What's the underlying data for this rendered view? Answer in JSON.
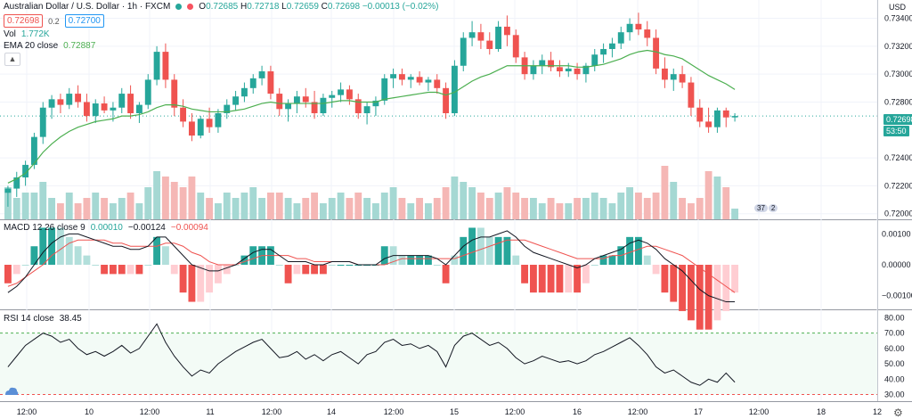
{
  "header": {
    "symbol": "Australian Dollar / U.S. Dollar · 1h · FXCM",
    "sell_price": "0.72698",
    "spread": "0.2",
    "buy_price": "0.72700",
    "ohlc": {
      "open_label": "O",
      "open": "0.72685",
      "high_label": "H",
      "high": "0.72718",
      "low_label": "L",
      "low": "0.72659",
      "close_label": "C",
      "close": "0.72698",
      "change": "−0.00013 (−0.02%)"
    }
  },
  "indicators": {
    "vol_label": "Vol",
    "vol_value": "1.772K",
    "ema_label": "EMA 20 close",
    "ema_value": "0.72887",
    "macd_label": "MACD 12 26 close 9",
    "macd_value1": "0.00010",
    "macd_value2": "−0.00124",
    "macd_value3": "−0.00094",
    "rsi_label": "RSI 14 close",
    "rsi_value": "38.45"
  },
  "price_axis": {
    "currency": "USD",
    "ticks": [
      "0.73400",
      "0.73200",
      "0.73000",
      "0.72800",
      "0.72400",
      "0.72200",
      "0.72000"
    ],
    "last_price_tag": "0.72698",
    "countdown_tag": "53:50"
  },
  "macd_axis": {
    "ticks": [
      "0.00100",
      "0.00000",
      "−0.00100"
    ]
  },
  "rsi_axis": {
    "ticks": [
      "80.00",
      "70.00",
      "60.00",
      "50.00",
      "40.00",
      "30.00"
    ]
  },
  "time_axis": {
    "ticks": [
      "12:00",
      "10",
      "12:00",
      "11",
      "12:00",
      "14",
      "12:00",
      "15",
      "12:00",
      "16",
      "12:00",
      "17",
      "12:00",
      "18",
      "12"
    ]
  },
  "events": {
    "badge_count": "37",
    "badge_count2": "2"
  },
  "colors": {
    "up": "#26a69a",
    "down": "#ef5350",
    "ema": "#4caf50",
    "macd": "#131722",
    "signal": "#ef5350",
    "rsi": "#131722"
  },
  "chart_data": {
    "type": "candlestick",
    "title": "Australian Dollar / U.S. Dollar · 1h · FXCM",
    "ylim": [
      0.7196,
      0.7348
    ],
    "candles": [
      [
        0.7215,
        0.722,
        0.7205,
        0.7218
      ],
      [
        0.7218,
        0.723,
        0.7212,
        0.7226
      ],
      [
        0.7226,
        0.7238,
        0.722,
        0.7235
      ],
      [
        0.7235,
        0.7258,
        0.7232,
        0.7255
      ],
      [
        0.7255,
        0.728,
        0.725,
        0.7276
      ],
      [
        0.7276,
        0.7285,
        0.7268,
        0.7282
      ],
      [
        0.7282,
        0.7286,
        0.7272,
        0.7278
      ],
      [
        0.7278,
        0.729,
        0.7275,
        0.7286
      ],
      [
        0.7286,
        0.7292,
        0.7276,
        0.728
      ],
      [
        0.728,
        0.7286,
        0.7266,
        0.727
      ],
      [
        0.727,
        0.7282,
        0.7265,
        0.7279
      ],
      [
        0.7279,
        0.7284,
        0.7272,
        0.7274
      ],
      [
        0.7274,
        0.728,
        0.7266,
        0.7276
      ],
      [
        0.7276,
        0.729,
        0.7272,
        0.7286
      ],
      [
        0.7286,
        0.7292,
        0.7268,
        0.7272
      ],
      [
        0.7272,
        0.728,
        0.7265,
        0.7278
      ],
      [
        0.7278,
        0.73,
        0.7275,
        0.7296
      ],
      [
        0.7296,
        0.732,
        0.7292,
        0.7316
      ],
      [
        0.7316,
        0.7322,
        0.729,
        0.7296
      ],
      [
        0.7296,
        0.73,
        0.727,
        0.7276
      ],
      [
        0.7276,
        0.7282,
        0.7262,
        0.7266
      ],
      [
        0.7266,
        0.7272,
        0.7252,
        0.7256
      ],
      [
        0.7256,
        0.727,
        0.7254,
        0.7268
      ],
      [
        0.7268,
        0.7276,
        0.7258,
        0.7262
      ],
      [
        0.7262,
        0.7275,
        0.7258,
        0.7272
      ],
      [
        0.7272,
        0.7282,
        0.7268,
        0.7278
      ],
      [
        0.7278,
        0.7288,
        0.7274,
        0.7284
      ],
      [
        0.7284,
        0.7294,
        0.728,
        0.729
      ],
      [
        0.729,
        0.73,
        0.7286,
        0.7297
      ],
      [
        0.7297,
        0.7306,
        0.7292,
        0.7302
      ],
      [
        0.7302,
        0.7306,
        0.7282,
        0.7286
      ],
      [
        0.7286,
        0.729,
        0.727,
        0.7275
      ],
      [
        0.7275,
        0.7282,
        0.7266,
        0.7279
      ],
      [
        0.7279,
        0.7288,
        0.7272,
        0.7284
      ],
      [
        0.7284,
        0.729,
        0.7276,
        0.728
      ],
      [
        0.728,
        0.7288,
        0.7268,
        0.7272
      ],
      [
        0.7272,
        0.7286,
        0.727,
        0.7283
      ],
      [
        0.7283,
        0.7288,
        0.7276,
        0.7285
      ],
      [
        0.7285,
        0.7294,
        0.728,
        0.7289
      ],
      [
        0.7289,
        0.7292,
        0.7278,
        0.7282
      ],
      [
        0.7282,
        0.7286,
        0.7268,
        0.7272
      ],
      [
        0.7272,
        0.728,
        0.7264,
        0.7277
      ],
      [
        0.7277,
        0.7284,
        0.727,
        0.7281
      ],
      [
        0.7281,
        0.73,
        0.7278,
        0.7297
      ],
      [
        0.7297,
        0.7304,
        0.729,
        0.73
      ],
      [
        0.73,
        0.7304,
        0.7292,
        0.7296
      ],
      [
        0.7296,
        0.73,
        0.729,
        0.7298
      ],
      [
        0.7298,
        0.7302,
        0.7292,
        0.7294
      ],
      [
        0.7294,
        0.7298,
        0.7288,
        0.7296
      ],
      [
        0.7296,
        0.73,
        0.7286,
        0.729
      ],
      [
        0.729,
        0.7294,
        0.7268,
        0.7272
      ],
      [
        0.7272,
        0.731,
        0.727,
        0.7306
      ],
      [
        0.7306,
        0.733,
        0.7302,
        0.7326
      ],
      [
        0.7326,
        0.7338,
        0.732,
        0.733
      ],
      [
        0.733,
        0.7336,
        0.7318,
        0.7324
      ],
      [
        0.7324,
        0.733,
        0.7314,
        0.7318
      ],
      [
        0.7318,
        0.7338,
        0.7316,
        0.7334
      ],
      [
        0.7334,
        0.7342,
        0.732,
        0.7328
      ],
      [
        0.7328,
        0.7332,
        0.7308,
        0.7312
      ],
      [
        0.7312,
        0.7316,
        0.7296,
        0.73
      ],
      [
        0.73,
        0.731,
        0.7296,
        0.7306
      ],
      [
        0.7306,
        0.7314,
        0.73,
        0.731
      ],
      [
        0.731,
        0.7316,
        0.7302,
        0.7305
      ],
      [
        0.7305,
        0.731,
        0.7298,
        0.7302
      ],
      [
        0.7302,
        0.7308,
        0.7298,
        0.7304
      ],
      [
        0.7304,
        0.7308,
        0.7296,
        0.73
      ],
      [
        0.73,
        0.7308,
        0.7294,
        0.7306
      ],
      [
        0.7306,
        0.7318,
        0.7302,
        0.7314
      ],
      [
        0.7314,
        0.7322,
        0.7308,
        0.7318
      ],
      [
        0.7318,
        0.7326,
        0.7312,
        0.7322
      ],
      [
        0.7322,
        0.7334,
        0.7318,
        0.733
      ],
      [
        0.733,
        0.734,
        0.7324,
        0.7336
      ],
      [
        0.7336,
        0.7344,
        0.7328,
        0.7332
      ],
      [
        0.7332,
        0.7338,
        0.732,
        0.7326
      ],
      [
        0.7326,
        0.7332,
        0.73,
        0.7304
      ],
      [
        0.7304,
        0.7312,
        0.729,
        0.7296
      ],
      [
        0.7296,
        0.7304,
        0.7288,
        0.73
      ],
      [
        0.73,
        0.7306,
        0.729,
        0.7294
      ],
      [
        0.7294,
        0.7298,
        0.727,
        0.7276
      ],
      [
        0.7276,
        0.7282,
        0.7262,
        0.7266
      ],
      [
        0.7266,
        0.7276,
        0.7258,
        0.7262
      ],
      [
        0.7262,
        0.7276,
        0.7258,
        0.7274
      ],
      [
        0.7274,
        0.7276,
        0.7262,
        0.7269
      ],
      [
        0.7269,
        0.7272,
        0.7266,
        0.727
      ]
    ],
    "ema": [
      0.7222,
      0.7225,
      0.7229,
      0.7236,
      0.7244,
      0.725,
      0.7255,
      0.7259,
      0.7262,
      0.7264,
      0.7266,
      0.7267,
      0.7268,
      0.727,
      0.727,
      0.7271,
      0.7273,
      0.7276,
      0.7278,
      0.7278,
      0.7277,
      0.7275,
      0.7274,
      0.7273,
      0.7273,
      0.7273,
      0.7274,
      0.7275,
      0.7277,
      0.7279,
      0.728,
      0.7279,
      0.7279,
      0.7279,
      0.7279,
      0.7279,
      0.7279,
      0.728,
      0.7281,
      0.7281,
      0.728,
      0.728,
      0.728,
      0.7282,
      0.7283,
      0.7284,
      0.7285,
      0.7286,
      0.7287,
      0.7287,
      0.7285,
      0.7287,
      0.7291,
      0.7295,
      0.7298,
      0.73,
      0.7303,
      0.7306,
      0.7306,
      0.7306,
      0.7306,
      0.7306,
      0.7306,
      0.7306,
      0.7306,
      0.7305,
      0.7305,
      0.7306,
      0.7307,
      0.7309,
      0.7311,
      0.7314,
      0.7316,
      0.7317,
      0.7316,
      0.7314,
      0.7313,
      0.7311,
      0.7307,
      0.7303,
      0.7299,
      0.7296,
      0.7293,
      0.7289
    ],
    "volume": [
      0.6,
      0.4,
      0.5,
      0.5,
      0.7,
      0.4,
      0.3,
      0.5,
      0.3,
      0.4,
      0.5,
      0.4,
      0.3,
      0.4,
      0.5,
      0.3,
      0.6,
      0.9,
      0.8,
      0.7,
      0.6,
      0.8,
      0.5,
      0.4,
      0.3,
      0.5,
      0.4,
      0.5,
      0.6,
      0.4,
      0.5,
      0.5,
      0.4,
      0.3,
      0.4,
      0.5,
      0.3,
      0.4,
      0.5,
      0.4,
      0.5,
      0.4,
      0.3,
      0.5,
      0.6,
      0.4,
      0.3,
      0.4,
      0.3,
      0.4,
      0.6,
      0.8,
      0.7,
      0.6,
      0.5,
      0.4,
      0.5,
      0.6,
      0.5,
      0.4,
      0.4,
      0.3,
      0.4,
      0.3,
      0.3,
      0.4,
      0.4,
      0.5,
      0.4,
      0.3,
      0.5,
      0.6,
      0.5,
      0.4,
      0.5,
      1.0,
      0.7,
      0.4,
      0.3,
      0.4,
      0.9,
      0.8,
      0.6,
      0.2
    ],
    "macd": [
      -0.0009,
      -0.0007,
      -0.0004,
      0.0,
      0.0004,
      0.0007,
      0.0009,
      0.001,
      0.001,
      0.0009,
      0.0008,
      0.0007,
      0.0006,
      0.0006,
      0.0005,
      0.0005,
      0.0006,
      0.0009,
      0.0009,
      0.0006,
      0.0003,
      0.0,
      -0.0001,
      -0.0002,
      -0.0002,
      -0.0001,
      0.0,
      0.0002,
      0.0004,
      0.0005,
      0.0005,
      0.0003,
      0.0001,
      0.0001,
      0.0001,
      0.0,
      0.0,
      0.0001,
      0.0001,
      0.0001,
      0.0,
      0.0,
      0.0,
      0.0002,
      0.0003,
      0.0003,
      0.0003,
      0.0003,
      0.0003,
      0.0002,
      0.0,
      0.0003,
      0.0006,
      0.0008,
      0.0009,
      0.0009,
      0.001,
      0.0011,
      0.0009,
      0.0006,
      0.0004,
      0.0003,
      0.0002,
      0.0001,
      0.0,
      -0.0001,
      0.0,
      0.0002,
      0.0003,
      0.0004,
      0.0005,
      0.0007,
      0.0008,
      0.0007,
      0.0005,
      0.0002,
      0.0,
      -0.0002,
      -0.0005,
      -0.0008,
      -0.001,
      -0.0011,
      -0.0012,
      -0.0012
    ],
    "signal": [
      -0.0007,
      -0.0006,
      -0.0004,
      -0.0002,
      0.0,
      0.0003,
      0.0005,
      0.0007,
      0.0008,
      0.0008,
      0.0008,
      0.0008,
      0.0007,
      0.0007,
      0.0006,
      0.0006,
      0.0006,
      0.0006,
      0.0007,
      0.0007,
      0.0006,
      0.0004,
      0.0003,
      0.0001,
      0.0,
      0.0,
      0.0,
      0.0001,
      0.0002,
      0.0003,
      0.0003,
      0.0003,
      0.0003,
      0.0002,
      0.0002,
      0.0001,
      0.0001,
      0.0001,
      0.0001,
      0.0001,
      0.0,
      0.0,
      0.0,
      0.0,
      0.0001,
      0.0002,
      0.0002,
      0.0002,
      0.0002,
      0.0002,
      0.0002,
      0.0002,
      0.0003,
      0.0004,
      0.0005,
      0.0006,
      0.0007,
      0.0008,
      0.0008,
      0.0008,
      0.0007,
      0.0006,
      0.0005,
      0.0004,
      0.0003,
      0.0002,
      0.0002,
      0.0002,
      0.0002,
      0.0003,
      0.0003,
      0.0004,
      0.0005,
      0.0006,
      0.0006,
      0.0005,
      0.0004,
      0.0003,
      0.0001,
      -0.0001,
      -0.0003,
      -0.0005,
      -0.0007,
      -0.0009
    ],
    "rsi": [
      48,
      55,
      62,
      66,
      70,
      68,
      64,
      66,
      60,
      56,
      58,
      55,
      58,
      62,
      57,
      60,
      68,
      76,
      64,
      55,
      48,
      42,
      46,
      44,
      50,
      54,
      58,
      61,
      64,
      66,
      60,
      54,
      55,
      58,
      53,
      56,
      52,
      56,
      58,
      54,
      50,
      56,
      58,
      64,
      66,
      62,
      63,
      60,
      62,
      58,
      48,
      62,
      68,
      70,
      66,
      62,
      64,
      60,
      54,
      50,
      52,
      55,
      53,
      51,
      52,
      50,
      52,
      56,
      58,
      61,
      64,
      67,
      62,
      56,
      48,
      44,
      46,
      42,
      38,
      36,
      40,
      38,
      44,
      38
    ]
  }
}
